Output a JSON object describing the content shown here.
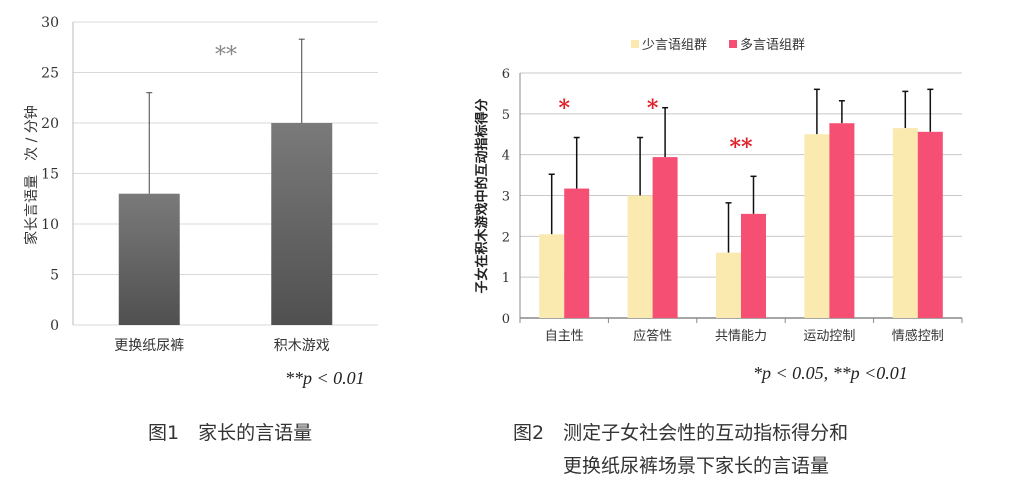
{
  "chart_data": [
    {
      "type": "bar",
      "title": "",
      "ylabel": "家长言语量　次 / 分钟",
      "xlabel": "",
      "ylim": [
        0,
        30
      ],
      "yticks": [
        0,
        5,
        10,
        15,
        20,
        25,
        30
      ],
      "grid": true,
      "categories": [
        "更换纸尿裤",
        "积木游戏"
      ],
      "values": [
        13,
        20
      ],
      "error_upper": [
        23.0,
        28.3
      ],
      "annotation": "**",
      "note": "**p < 0.01",
      "bar_color": "#5e5e5e"
    },
    {
      "type": "bar",
      "title": "",
      "ylabel": "子女在积木游戏中的互动指标得分",
      "xlabel": "",
      "ylim": [
        0,
        6
      ],
      "yticks": [
        0,
        1,
        2,
        3,
        4,
        5,
        6
      ],
      "grid": true,
      "legend": "top",
      "categories": [
        "自主性",
        "应答性",
        "共情能力",
        "运动控制",
        "情感控制"
      ],
      "series": [
        {
          "name": "少言语组群",
          "color": "#faeab0",
          "values": [
            2.05,
            3.0,
            1.6,
            4.5,
            4.65
          ],
          "error_upper": [
            3.52,
            4.42,
            2.82,
            5.6,
            5.55
          ]
        },
        {
          "name": "多言语组群",
          "color": "#f55074",
          "values": [
            3.17,
            3.94,
            2.55,
            4.77,
            4.56
          ],
          "error_upper": [
            4.42,
            5.15,
            3.47,
            5.32,
            5.6
          ]
        }
      ],
      "significance": [
        "*",
        "*",
        "**",
        "",
        ""
      ],
      "note": "*p < 0.05, **p <0.01"
    }
  ],
  "captions": {
    "fig1": "图1　家长的言语量",
    "fig2_line1": "图2　测定子女社会性的互动指标得分和",
    "fig2_line2": "更换纸尿裤场景下家长的言语量"
  }
}
